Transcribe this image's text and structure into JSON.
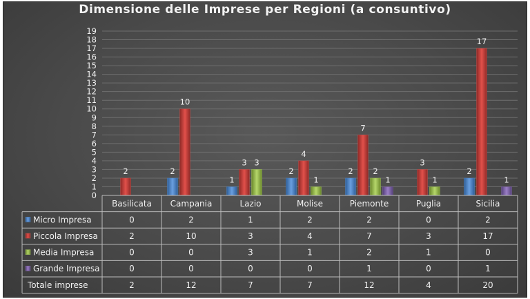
{
  "chart_data": {
    "type": "bar",
    "title": "Dimensione delle Imprese per Regioni (a consuntivo)",
    "categories": [
      "Basilicata",
      "Campania",
      "Lazio",
      "Molise",
      "Piemonte",
      "Puglia",
      "Sicilia"
    ],
    "series": [
      {
        "name": "Micro Impresa",
        "color": "#4f86c6",
        "values": [
          0,
          2,
          1,
          2,
          2,
          0,
          2
        ]
      },
      {
        "name": "Piccola Impresa",
        "color": "#c0504d",
        "values": [
          2,
          10,
          3,
          4,
          7,
          3,
          17
        ]
      },
      {
        "name": "Media Impresa",
        "color": "#9bbb59",
        "values": [
          0,
          0,
          3,
          1,
          2,
          1,
          0
        ]
      },
      {
        "name": "Grande Impresa",
        "color": "#8064a2",
        "values": [
          0,
          0,
          0,
          0,
          1,
          0,
          1
        ]
      }
    ],
    "table_total_row": {
      "name": "Totale imprese",
      "values": [
        2,
        12,
        7,
        7,
        12,
        4,
        20
      ]
    },
    "ylim": [
      0,
      19
    ],
    "y_ticks": [
      0,
      1,
      2,
      3,
      4,
      5,
      6,
      7,
      8,
      9,
      10,
      11,
      12,
      13,
      14,
      15,
      16,
      17,
      18,
      19
    ],
    "grid": true,
    "legend": "data-table",
    "xlabel": "",
    "ylabel": ""
  }
}
